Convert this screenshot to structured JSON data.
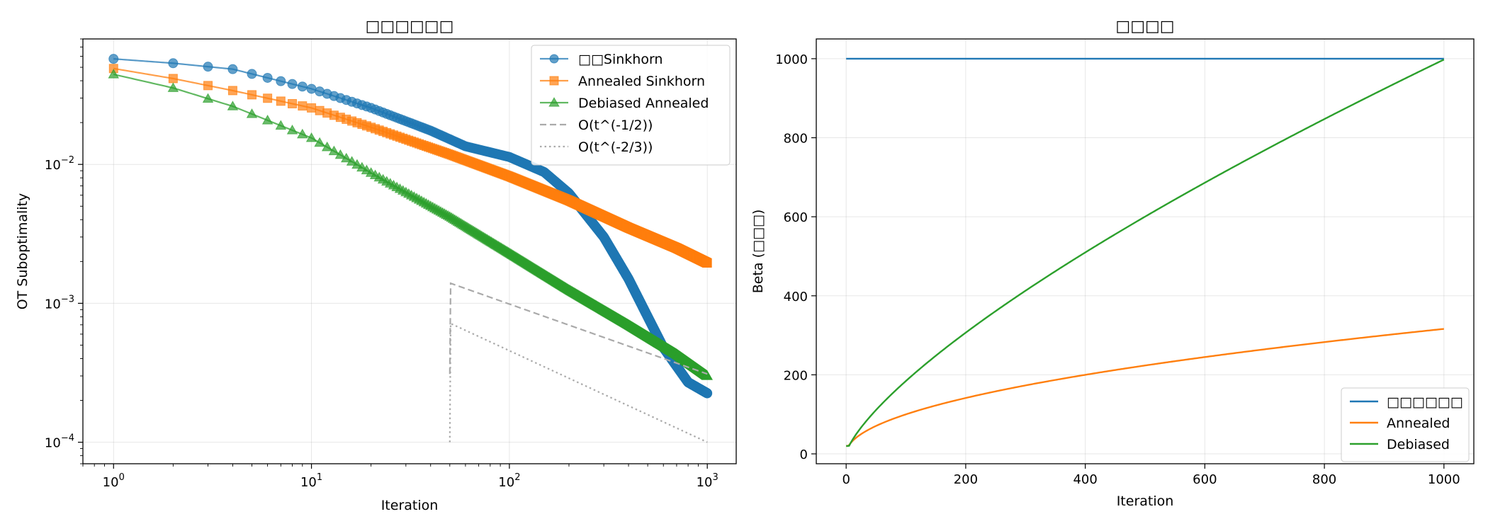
{
  "chart_data": [
    {
      "type": "line",
      "title": "□□□□□□",
      "xlabel": "Iteration",
      "ylabel": "OT Suboptimality",
      "xscale": "log",
      "yscale": "log",
      "xlim": [
        0.7,
        1400
      ],
      "ylim": [
        7e-05,
        0.08
      ],
      "xticks": [
        {
          "value": 1,
          "base": "10",
          "exp": "0"
        },
        {
          "value": 10,
          "base": "10",
          "exp": "1"
        },
        {
          "value": 100,
          "base": "10",
          "exp": "2"
        },
        {
          "value": 1000,
          "base": "10",
          "exp": "3"
        }
      ],
      "yticks": [
        {
          "value": 0.0001,
          "base": "10",
          "exp": "−4"
        },
        {
          "value": 0.001,
          "base": "10",
          "exp": "−3"
        },
        {
          "value": 0.01,
          "base": "10",
          "exp": "−2"
        }
      ],
      "grid": true,
      "legend_position": "top-right",
      "series": [
        {
          "name": "□□Sinkhorn",
          "color": "#1f77b4",
          "marker": "circle",
          "curve": [
            [
              1,
              0.0575
            ],
            [
              2,
              0.0535
            ],
            [
              4,
              0.0485
            ],
            [
              10,
              0.035
            ],
            [
              20,
              0.0255
            ],
            [
              40,
              0.0175
            ],
            [
              60,
              0.0135
            ],
            [
              100,
              0.0113
            ],
            [
              150,
              0.0088
            ],
            [
              200,
              0.0062
            ],
            [
              300,
              0.003
            ],
            [
              400,
              0.0015
            ],
            [
              500,
              0.0008
            ],
            [
              600,
              0.00048
            ],
            [
              800,
              0.00027
            ],
            [
              1000,
              0.000225
            ]
          ]
        },
        {
          "name": "Annealed Sinkhorn",
          "color": "#ff7f0e",
          "marker": "square",
          "curve": [
            [
              1,
              0.049
            ],
            [
              2,
              0.0415
            ],
            [
              4,
              0.034
            ],
            [
              10,
              0.0255
            ],
            [
              20,
              0.0185
            ],
            [
              50,
              0.0118
            ],
            [
              100,
              0.0082
            ],
            [
              200,
              0.0055
            ],
            [
              400,
              0.0035
            ],
            [
              700,
              0.0025
            ],
            [
              1000,
              0.00195
            ]
          ]
        },
        {
          "name": "Debiased Annealed",
          "color": "#2ca02c",
          "marker": "triangle",
          "curve": [
            [
              1,
              0.0445
            ],
            [
              2,
              0.0355
            ],
            [
              4,
              0.0262
            ],
            [
              10,
              0.0155
            ],
            [
              20,
              0.0087
            ],
            [
              50,
              0.0042
            ],
            [
              100,
              0.0023
            ],
            [
              200,
              0.00125
            ],
            [
              400,
              0.0007
            ],
            [
              700,
              0.00043
            ],
            [
              1000,
              0.0003
            ]
          ]
        },
        {
          "name": "O(t^(-1/2))",
          "color": "#aaaaaa",
          "style": "dashed",
          "curve": [
            [
              50,
              0.0014
            ],
            [
              1000,
              0.00031
            ]
          ]
        },
        {
          "name": "O(t^(-2/3))",
          "color": "#aaaaaa",
          "style": "dotted",
          "curve": [
            [
              50,
              0.00072
            ],
            [
              1000,
              0.0001
            ]
          ]
        }
      ]
    },
    {
      "type": "line",
      "title": "□□□□",
      "xlabel": "Iteration",
      "ylabel": "Beta (□□□)",
      "xlim": [
        -50,
        1050
      ],
      "ylim": [
        -25,
        1050
      ],
      "xticks": [
        0,
        200,
        400,
        600,
        800,
        1000
      ],
      "yticks": [
        0,
        200,
        400,
        600,
        800,
        1000
      ],
      "grid": true,
      "legend_position": "lower-right",
      "series": [
        {
          "name": "□□□□□□",
          "color": "#1f77b4",
          "formula": "constant",
          "params": {
            "value": 1000
          }
        },
        {
          "name": "Annealed",
          "color": "#ff7f0e",
          "formula": "sqrt",
          "params": {
            "coef": 10,
            "start": 20
          }
        },
        {
          "name": "Debiased",
          "color": "#2ca02c",
          "formula": "power",
          "params": {
            "coef": 6.31,
            "exp": 0.733,
            "start": 20
          }
        }
      ]
    }
  ]
}
